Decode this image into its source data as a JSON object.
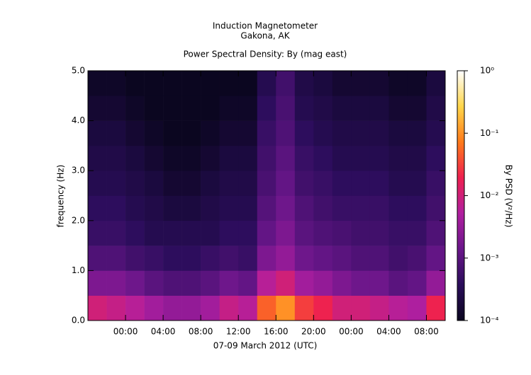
{
  "chart_data": {
    "type": "heatmap",
    "title": "Induction Magnetometer",
    "subtitle": "Gakona, AK",
    "plot_title": "Power Spectral Density: By (mag east)",
    "xlabel": "07-09 March 2012 (UTC)",
    "ylabel": "frequency (Hz)",
    "colorbar_label": "By PSD (V²/Hz)",
    "xlim": [
      20,
      58
    ],
    "ylim": [
      0,
      5
    ],
    "xticks": [
      {
        "value": 24,
        "label": "00:00"
      },
      {
        "value": 28,
        "label": "04:00"
      },
      {
        "value": 32,
        "label": "08:00"
      },
      {
        "value": 36,
        "label": "12:00"
      },
      {
        "value": 40,
        "label": "16:00"
      },
      {
        "value": 44,
        "label": "20:00"
      },
      {
        "value": 48,
        "label": "00:00"
      },
      {
        "value": 52,
        "label": "04:00"
      },
      {
        "value": 56,
        "label": "08:00"
      }
    ],
    "yticks": [
      {
        "value": 0,
        "label": "0.0"
      },
      {
        "value": 1,
        "label": "1.0"
      },
      {
        "value": 2,
        "label": "2.0"
      },
      {
        "value": 3,
        "label": "3.0"
      },
      {
        "value": 4,
        "label": "4.0"
      },
      {
        "value": 5,
        "label": "5.0"
      }
    ],
    "clim": [
      0.0001,
      1
    ],
    "color_log_scale": true,
    "cticks": [
      {
        "value": 0.0001,
        "label": "10⁻⁴"
      },
      {
        "value": 0.001,
        "label": "10⁻³"
      },
      {
        "value": 0.01,
        "label": "10⁻²"
      },
      {
        "value": 0.1,
        "label": "10⁻¹"
      },
      {
        "value": 1,
        "label": "10⁰"
      }
    ],
    "colormap": [
      "#0b0620",
      "#2a0d5a",
      "#6a168a",
      "#b01fa0",
      "#ee2050",
      "#ff7a1a",
      "#ffd64a",
      "#ffffff"
    ],
    "x_bins": [
      20,
      22,
      24,
      26,
      28,
      30,
      32,
      34,
      36,
      38,
      40,
      42,
      44,
      46,
      48,
      50,
      52,
      54,
      56,
      58
    ],
    "y_bins": [
      0,
      0.5,
      1,
      1.5,
      2,
      2.5,
      3,
      3.5,
      4,
      4.5,
      5
    ],
    "z": [
      [
        0.01,
        0.008,
        0.006,
        0.004,
        0.003,
        0.003,
        0.004,
        0.008,
        0.006,
        0.05,
        0.1,
        0.03,
        0.02,
        0.01,
        0.01,
        0.008,
        0.006,
        0.005,
        0.02
      ],
      [
        0.002,
        0.002,
        0.0015,
        0.001,
        0.0008,
        0.0008,
        0.001,
        0.0015,
        0.0012,
        0.006,
        0.01,
        0.004,
        0.003,
        0.002,
        0.0015,
        0.0015,
        0.001,
        0.0012,
        0.003
      ],
      [
        0.0008,
        0.0008,
        0.0006,
        0.0005,
        0.0004,
        0.0004,
        0.0005,
        0.0006,
        0.0005,
        0.002,
        0.003,
        0.0015,
        0.0012,
        0.001,
        0.0008,
        0.0008,
        0.0006,
        0.0007,
        0.0012
      ],
      [
        0.0005,
        0.0005,
        0.0004,
        0.0003,
        0.0003,
        0.0003,
        0.0003,
        0.0004,
        0.0004,
        0.0012,
        0.002,
        0.001,
        0.0008,
        0.0007,
        0.0006,
        0.0006,
        0.0005,
        0.0005,
        0.0008
      ],
      [
        0.0004,
        0.0004,
        0.0003,
        0.00025,
        0.0002,
        0.0002,
        0.00025,
        0.0003,
        0.0003,
        0.0009,
        0.0015,
        0.0008,
        0.0006,
        0.0005,
        0.0005,
        0.0005,
        0.0004,
        0.0004,
        0.0006
      ],
      [
        0.0003,
        0.0003,
        0.00025,
        0.0002,
        0.00015,
        0.00015,
        0.0002,
        0.00025,
        0.00025,
        0.0007,
        0.0012,
        0.0006,
        0.0005,
        0.0004,
        0.0004,
        0.0004,
        0.0003,
        0.0003,
        0.0005
      ],
      [
        0.00025,
        0.00025,
        0.0002,
        0.00015,
        0.00012,
        0.00012,
        0.00015,
        0.0002,
        0.0002,
        0.0006,
        0.001,
        0.0005,
        0.0004,
        0.0003,
        0.0003,
        0.0003,
        0.00025,
        0.00025,
        0.0004
      ],
      [
        0.0002,
        0.0002,
        0.00015,
        0.00012,
        0.0001,
        0.0001,
        0.00012,
        0.00015,
        0.00015,
        0.0005,
        0.0008,
        0.0004,
        0.0003,
        0.00025,
        0.00025,
        0.00025,
        0.0002,
        0.0002,
        0.0003
      ],
      [
        0.00015,
        0.00015,
        0.00012,
        0.0001,
        0.0001,
        0.0001,
        0.0001,
        0.00012,
        0.00012,
        0.0004,
        0.0007,
        0.0003,
        0.00025,
        0.0002,
        0.0002,
        0.0002,
        0.00015,
        0.00015,
        0.00025
      ],
      [
        0.00012,
        0.00012,
        0.0001,
        0.0001,
        0.0001,
        0.0001,
        0.0001,
        0.0001,
        0.0001,
        0.0003,
        0.0006,
        0.00025,
        0.0002,
        0.00015,
        0.00015,
        0.00015,
        0.00012,
        0.00012,
        0.0002
      ]
    ]
  }
}
